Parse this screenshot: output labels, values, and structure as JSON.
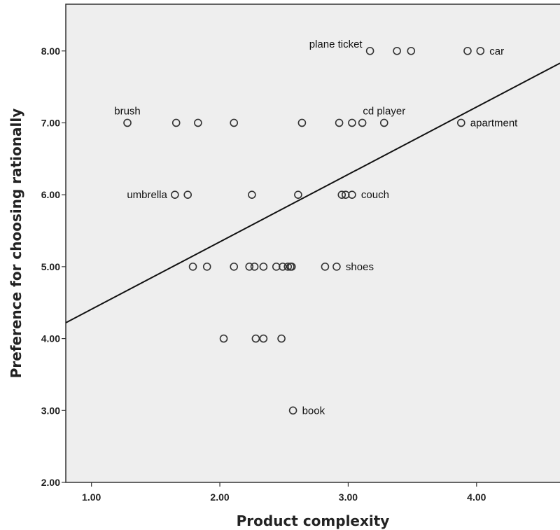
{
  "chart_data": {
    "type": "scatter",
    "title": "",
    "xlabel": "Product complexity",
    "ylabel": "Preference for choosing rationally",
    "xlim": [
      0.8,
      4.65
    ],
    "ylim": [
      2.0,
      8.65
    ],
    "grid": false,
    "x_ticks": [
      {
        "value": 1.0,
        "label": "1.00"
      },
      {
        "value": 2.0,
        "label": "2.00"
      },
      {
        "value": 3.0,
        "label": "3.00"
      },
      {
        "value": 4.0,
        "label": "4.00"
      }
    ],
    "y_ticks": [
      {
        "value": 2.0,
        "label": "2.00"
      },
      {
        "value": 3.0,
        "label": "3.00"
      },
      {
        "value": 4.0,
        "label": "4.00"
      },
      {
        "value": 5.0,
        "label": "5.00"
      },
      {
        "value": 6.0,
        "label": "6.00"
      },
      {
        "value": 7.0,
        "label": "7.00"
      },
      {
        "value": 8.0,
        "label": "8.00"
      }
    ],
    "points": [
      {
        "x": 3.17,
        "y": 8.0,
        "label": "plane ticket",
        "label_side": "left"
      },
      {
        "x": 3.38,
        "y": 8.0
      },
      {
        "x": 3.49,
        "y": 8.0
      },
      {
        "x": 3.93,
        "y": 8.0
      },
      {
        "x": 4.03,
        "y": 8.0,
        "label": "car",
        "label_side": "right"
      },
      {
        "x": 1.28,
        "y": 7.0,
        "label": "brush",
        "label_side": "above"
      },
      {
        "x": 1.66,
        "y": 7.0
      },
      {
        "x": 1.83,
        "y": 7.0
      },
      {
        "x": 2.11,
        "y": 7.0
      },
      {
        "x": 2.64,
        "y": 7.0
      },
      {
        "x": 2.93,
        "y": 7.0
      },
      {
        "x": 3.03,
        "y": 7.0
      },
      {
        "x": 3.11,
        "y": 7.0
      },
      {
        "x": 3.28,
        "y": 7.0,
        "label": "cd player",
        "label_side": "above"
      },
      {
        "x": 3.88,
        "y": 7.0,
        "label": "apartment",
        "label_side": "right"
      },
      {
        "x": 1.65,
        "y": 6.0,
        "label": "umbrella",
        "label_side": "left"
      },
      {
        "x": 1.75,
        "y": 6.0
      },
      {
        "x": 2.25,
        "y": 6.0
      },
      {
        "x": 2.61,
        "y": 6.0
      },
      {
        "x": 2.95,
        "y": 6.0
      },
      {
        "x": 2.98,
        "y": 6.0
      },
      {
        "x": 3.03,
        "y": 6.0,
        "label": "couch",
        "label_side": "right"
      },
      {
        "x": 1.79,
        "y": 5.0
      },
      {
        "x": 1.9,
        "y": 5.0
      },
      {
        "x": 2.11,
        "y": 5.0
      },
      {
        "x": 2.23,
        "y": 5.0
      },
      {
        "x": 2.27,
        "y": 5.0
      },
      {
        "x": 2.34,
        "y": 5.0
      },
      {
        "x": 2.44,
        "y": 5.0
      },
      {
        "x": 2.49,
        "y": 5.0
      },
      {
        "x": 2.53,
        "y": 5.0
      },
      {
        "x": 2.55,
        "y": 5.0
      },
      {
        "x": 2.56,
        "y": 5.0
      },
      {
        "x": 2.82,
        "y": 5.0
      },
      {
        "x": 2.91,
        "y": 5.0,
        "label": "shoes",
        "label_side": "right"
      },
      {
        "x": 2.03,
        "y": 4.0
      },
      {
        "x": 2.28,
        "y": 4.0
      },
      {
        "x": 2.34,
        "y": 4.0
      },
      {
        "x": 2.48,
        "y": 4.0
      },
      {
        "x": 2.57,
        "y": 3.0,
        "label": "book",
        "label_side": "right"
      }
    ],
    "fit_line": {
      "x": [
        0.8,
        4.65
      ],
      "y": [
        4.22,
        7.83
      ]
    }
  }
}
